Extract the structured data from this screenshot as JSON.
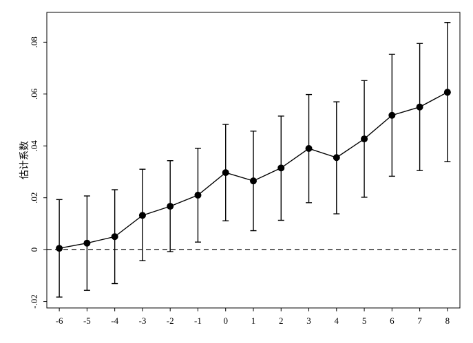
{
  "chart_data": {
    "type": "line",
    "ylabel": "估计系数",
    "xlabel": "",
    "x": [
      -6,
      -5,
      -4,
      -3,
      -2,
      -1,
      0,
      1,
      2,
      3,
      4,
      5,
      6,
      7,
      8
    ],
    "series": [
      {
        "values": [
          0.0005,
          0.0025,
          0.005,
          0.0132,
          0.0167,
          0.021,
          0.0297,
          0.0265,
          0.0315,
          0.039,
          0.0355,
          0.0427,
          0.0518,
          0.055,
          0.0607
        ],
        "ci_lower": [
          -0.0183,
          -0.0157,
          -0.0131,
          -0.0043,
          -0.0008,
          0.0029,
          0.0111,
          0.0073,
          0.0113,
          0.0181,
          0.0138,
          0.0202,
          0.0283,
          0.0305,
          0.0339
        ],
        "ci_upper": [
          0.0193,
          0.0207,
          0.0231,
          0.031,
          0.0343,
          0.0391,
          0.0483,
          0.0457,
          0.0515,
          0.0598,
          0.057,
          0.0652,
          0.0753,
          0.0795,
          0.0876
        ]
      }
    ],
    "xticks": [
      "-6",
      "-5",
      "-4",
      "-3",
      "-2",
      "-1",
      "0",
      "1",
      "2",
      "3",
      "4",
      "5",
      "6",
      "7",
      "8"
    ],
    "yticks": [
      "-.02",
      "0",
      ".02",
      ".04",
      ".06",
      ".08"
    ],
    "ytick_values": [
      -0.02,
      0,
      0.02,
      0.04,
      0.06,
      0.08
    ],
    "xlim": [
      -6.45,
      8.45
    ],
    "ylim": [
      -0.0225,
      0.0915
    ],
    "reference_line": {
      "y": 0,
      "style": "dashed"
    },
    "grid": false,
    "colors": {
      "line": "#000000",
      "marker": "#000000",
      "background": "#ffffff"
    }
  }
}
